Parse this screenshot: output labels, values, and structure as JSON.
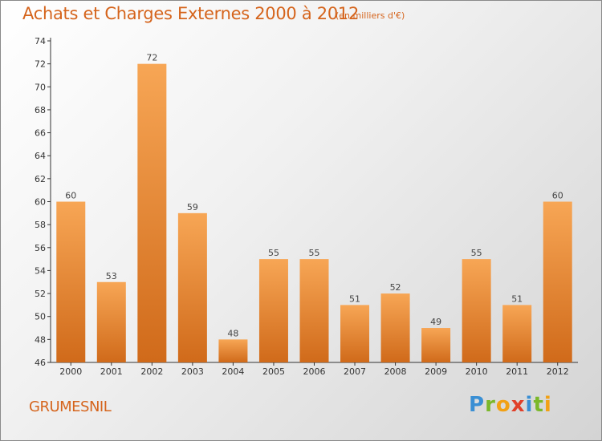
{
  "title": "Achats et Charges Externes 2000 à 2012",
  "unit": "(en milliers d'€)",
  "commune": "GRUMESNIL",
  "logo": {
    "letters": [
      {
        "ch": "P",
        "color": "#3a8fd4"
      },
      {
        "ch": "r",
        "color": "#7bb82a"
      },
      {
        "ch": "o",
        "color": "#f2a114"
      },
      {
        "ch": "x",
        "color": "#e0402a"
      },
      {
        "ch": "i",
        "color": "#3a8fd4"
      },
      {
        "ch": "t",
        "color": "#7bb82a"
      },
      {
        "ch": "i",
        "color": "#f2a114"
      }
    ]
  },
  "colors": {
    "bar_top": "#f7a655",
    "bar_bottom": "#d06a1a",
    "accent": "#d5641c"
  },
  "chart_data": {
    "type": "bar",
    "title": "Achats et Charges Externes 2000 à 2012",
    "subtitle": "(en milliers d'€)",
    "categories": [
      "2000",
      "2001",
      "2002",
      "2003",
      "2004",
      "2005",
      "2006",
      "2007",
      "2008",
      "2009",
      "2010",
      "2011",
      "2012"
    ],
    "values": [
      60,
      53,
      72,
      59,
      48,
      55,
      55,
      51,
      52,
      49,
      55,
      51,
      60
    ],
    "ylim": [
      46,
      74
    ],
    "yticks": [
      46,
      48,
      50,
      52,
      54,
      56,
      58,
      60,
      62,
      64,
      66,
      68,
      70,
      72,
      74
    ],
    "grid": false,
    "xlabel": "",
    "ylabel": ""
  }
}
